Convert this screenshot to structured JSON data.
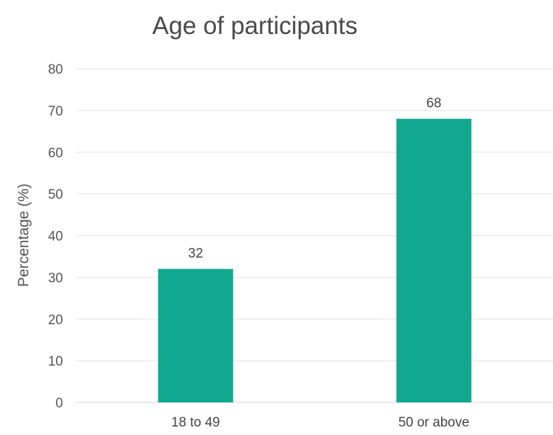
{
  "chart_data": {
    "type": "bar",
    "title": "Age of participants",
    "xlabel": "",
    "ylabel": "Percentage (%)",
    "categories": [
      "18 to 49",
      "50 or above"
    ],
    "values": [
      32,
      68
    ],
    "data_labels": [
      "32",
      "68"
    ],
    "ylim": [
      0,
      80
    ],
    "yticks": [
      "0",
      "10",
      "20",
      "30",
      "40",
      "50",
      "60",
      "70",
      "80"
    ],
    "grid": true,
    "legend": "none",
    "bar_color": "#12a88f"
  }
}
